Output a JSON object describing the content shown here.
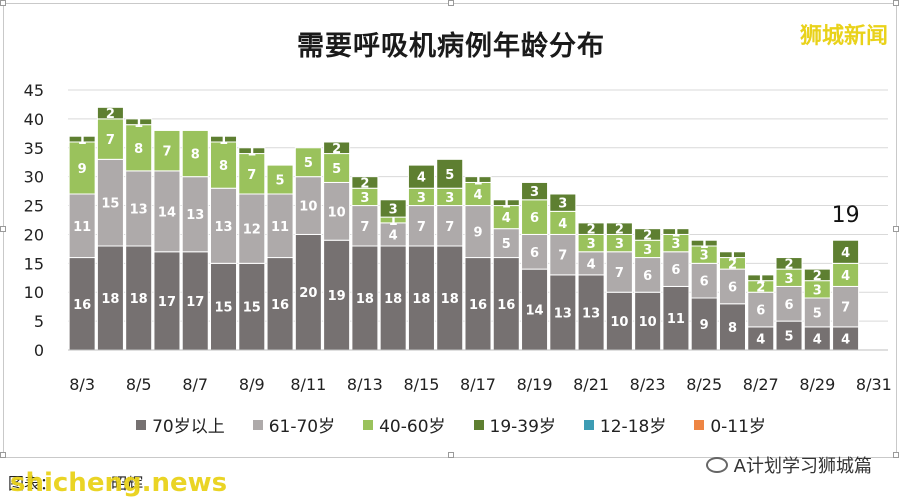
{
  "title": "需要呼吸机病例年龄分布",
  "brand": "狮城新闻",
  "source": "图表：",
  "source_suffix": "昭辉",
  "watermark": "shicheng.news",
  "wechat_account": "A计划学习狮城篇",
  "colors": {
    "70+": "#767171",
    "61-70": "#aeaaaa",
    "40-60": "#9ac25c",
    "19-39": "#5e7f31",
    "12-18": "#3d9cb4",
    "0-11": "#ee8543"
  },
  "chart_data": {
    "type": "bar",
    "stacked": true,
    "categories": [
      "8/3",
      "8/4",
      "8/5",
      "8/6",
      "8/7",
      "8/8",
      "8/9",
      "8/10",
      "8/11",
      "8/12",
      "8/13",
      "8/14",
      "8/15",
      "8/16",
      "8/17",
      "8/18",
      "8/19",
      "8/20",
      "8/21",
      "8/22",
      "8/23",
      "8/24",
      "8/25",
      "8/26",
      "8/27",
      "8/28",
      "8/29",
      "8/30",
      "8/31"
    ],
    "x_tick_labels": [
      "8/3",
      "8/5",
      "8/7",
      "8/9",
      "8/11",
      "8/13",
      "8/15",
      "8/17",
      "8/19",
      "8/21",
      "8/23",
      "8/25",
      "8/27",
      "8/29",
      "8/31"
    ],
    "ylim": [
      0,
      45
    ],
    "yticks": [
      0,
      5,
      10,
      15,
      20,
      25,
      30,
      35,
      40,
      45
    ],
    "grid": true,
    "legend_position": "bottom",
    "series": [
      {
        "name": "70岁以上",
        "key": "70+",
        "values": [
          16,
          18,
          18,
          17,
          17,
          15,
          15,
          16,
          20,
          19,
          18,
          18,
          18,
          18,
          16,
          16,
          14,
          13,
          13,
          10,
          10,
          11,
          9,
          8,
          4,
          5,
          4,
          4,
          null
        ]
      },
      {
        "name": "61-70岁",
        "key": "61-70",
        "values": [
          11,
          15,
          13,
          14,
          13,
          13,
          12,
          11,
          10,
          10,
          7,
          4,
          7,
          7,
          9,
          5,
          6,
          7,
          4,
          7,
          6,
          6,
          6,
          6,
          6,
          6,
          5,
          7,
          null
        ]
      },
      {
        "name": "40-60岁",
        "key": "40-60",
        "values": [
          9,
          7,
          8,
          7,
          8,
          8,
          7,
          5,
          5,
          5,
          3,
          1,
          3,
          3,
          4,
          4,
          6,
          4,
          3,
          3,
          3,
          3,
          3,
          2,
          2,
          3,
          3,
          4,
          null
        ]
      },
      {
        "name": "19-39岁",
        "key": "19-39",
        "values": [
          1,
          2,
          1,
          0,
          0,
          1,
          1,
          0,
          0,
          2,
          2,
          3,
          4,
          5,
          1,
          1,
          3,
          3,
          2,
          2,
          2,
          1,
          1,
          1,
          1,
          2,
          2,
          4,
          null
        ]
      },
      {
        "name": "12-18岁",
        "key": "12-18",
        "values": [
          0,
          0,
          0,
          0,
          0,
          0,
          0,
          0,
          0,
          0,
          0,
          0,
          0,
          0,
          0,
          0,
          0,
          0,
          0,
          0,
          0,
          0,
          0,
          0,
          0,
          0,
          0,
          0,
          null
        ]
      },
      {
        "name": "0-11岁",
        "key": "0-11",
        "values": [
          0,
          0,
          0,
          0,
          0,
          0,
          0,
          0,
          0,
          0,
          0,
          0,
          0,
          0,
          0,
          0,
          0,
          0,
          0,
          0,
          0,
          0,
          0,
          0,
          0,
          0,
          0,
          0,
          null
        ]
      }
    ],
    "annotations": [
      {
        "category": "8/30",
        "text": "19"
      }
    ]
  }
}
